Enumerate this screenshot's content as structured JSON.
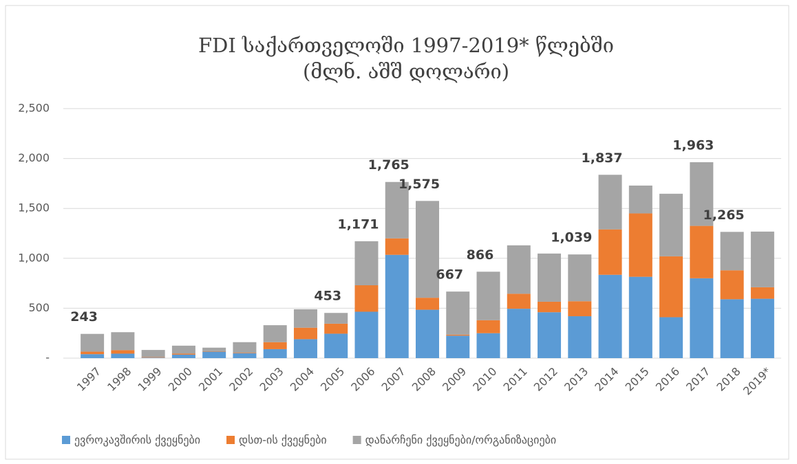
{
  "chart_data": {
    "type": "stacked_bar",
    "title": "FDI საქართველოში 1997-2019* წლებში",
    "subtitle": "(მლნ. აშშ დოლარი)",
    "categories": [
      "1997",
      "1998",
      "1999",
      "2000",
      "2001",
      "2002",
      "2003",
      "2004",
      "2005",
      "2006",
      "2007",
      "2008",
      "2009",
      "2010",
      "2011",
      "2012",
      "2013",
      "2014",
      "2015",
      "2016",
      "2017",
      "2018",
      "2019*"
    ],
    "series": [
      {
        "name": "ევროკავშირის ქვეყნები",
        "color": "#5b9bd5",
        "values": [
          40,
          45,
          5,
          35,
          65,
          50,
          90,
          190,
          245,
          465,
          1035,
          485,
          225,
          250,
          495,
          460,
          420,
          835,
          815,
          410,
          800,
          590,
          595
        ]
      },
      {
        "name": "დსთ-ის ქვეყნები",
        "color": "#ed7d31",
        "values": [
          25,
          35,
          5,
          10,
          5,
          5,
          70,
          115,
          100,
          265,
          165,
          120,
          10,
          130,
          150,
          105,
          150,
          455,
          635,
          610,
          525,
          290,
          115
        ]
      },
      {
        "name": "დანარჩენი ქვეყნები/ორგანიზაციები",
        "color": "#a5a5a5",
        "values": [
          178,
          180,
          72,
          80,
          35,
          105,
          170,
          185,
          108,
          441,
          565,
          970,
          432,
          486,
          485,
          483,
          469,
          547,
          279,
          627,
          638,
          385,
          558
        ]
      }
    ],
    "value_labels": [
      "243",
      null,
      null,
      null,
      null,
      null,
      null,
      null,
      "453",
      "1,171",
      "1,765",
      "1,575",
      "667",
      "866",
      null,
      null,
      "1,039",
      "1,837",
      null,
      null,
      "1,963",
      "1,265",
      null
    ],
    "ylim": [
      0,
      2500
    ],
    "yticks": [
      {
        "value": 0,
        "label": "-"
      },
      500,
      {
        "value": 1000,
        "label": "1,000"
      },
      {
        "value": 1500,
        "label": "1,500"
      },
      {
        "value": 2000,
        "label": "2,000"
      },
      {
        "value": 2500,
        "label": "2,500"
      }
    ],
    "grid": true,
    "legend": "bottom"
  }
}
